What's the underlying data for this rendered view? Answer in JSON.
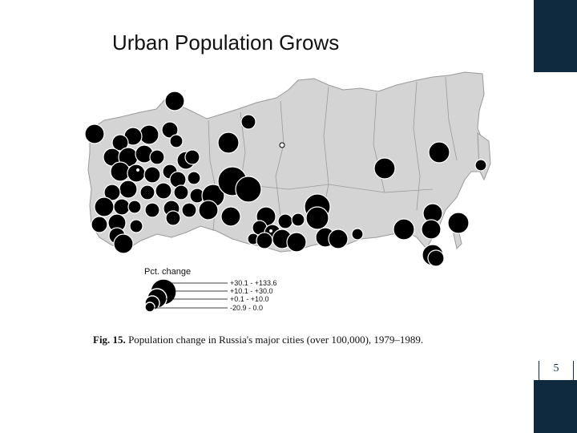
{
  "slide": {
    "title": "Urban Population Grows",
    "page_number": "5"
  },
  "figure": {
    "caption_label": "Fig. 15.",
    "caption_text": "Population change in Russia's major cities (over 100,000), 1979–1989.",
    "legend": {
      "title": "Pct. change",
      "classes": [
        {
          "label": "+30.1 - +133.6"
        },
        {
          "label": "+10.1 - +30.0"
        },
        {
          "label": "+0.1 - +10.0"
        },
        {
          "label": "-20.9 - 0.0"
        }
      ]
    }
  },
  "colors": {
    "accent": "#0f2a3f",
    "land": "#d4d4d4",
    "city": "#000000"
  }
}
